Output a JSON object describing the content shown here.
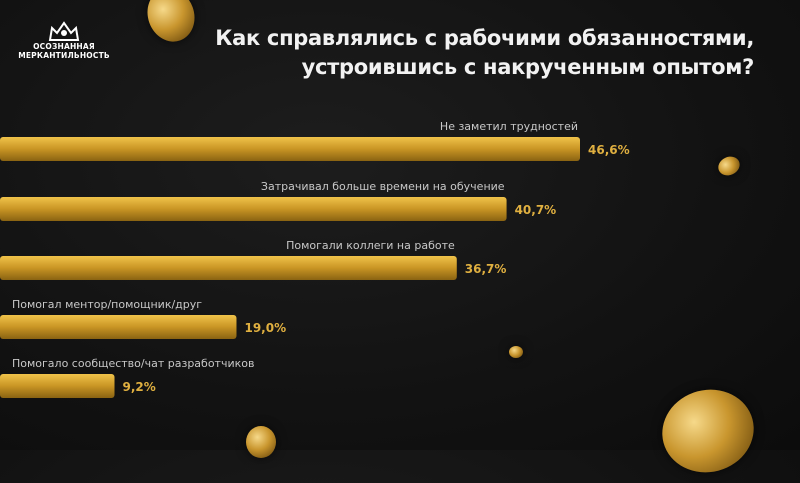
{
  "logo": {
    "line1": "ОСОЗНАННАЯ",
    "line2": "МЕРКАНТИЛЬНОСТЬ"
  },
  "title": {
    "line1": "Как справлялись с рабочими обязанностями,",
    "line2": "устроившись с накрученным опытом?"
  },
  "colors": {
    "bar": "#d4a62e",
    "value_text": "#e0b040",
    "label_text": "#c8c8c8",
    "title": "#f2f2f2"
  },
  "chart_data": {
    "type": "bar",
    "orientation": "horizontal",
    "categories": [
      "Не заметил трудностей",
      "Затрачивал больше времени на обучение",
      "Помогали коллеги на работе",
      "Помогал ментор/помощник/друг",
      "Помогало сообщество/чат разработчиков"
    ],
    "values": [
      46.6,
      40.7,
      36.7,
      19.0,
      9.2
    ],
    "value_labels": [
      "46,6%",
      "40,7%",
      "36,7%",
      "19,0%",
      "9,2%"
    ],
    "xlim": [
      0,
      46.6
    ],
    "grid": false
  }
}
